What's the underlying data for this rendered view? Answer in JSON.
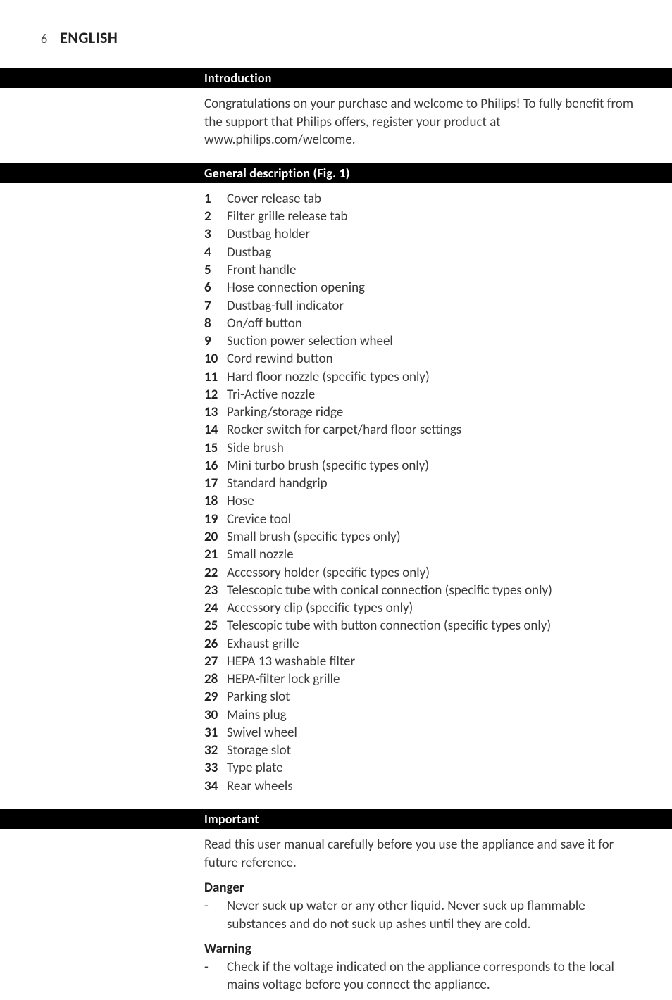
{
  "header": {
    "page_number": "6",
    "language": "ENGLISH"
  },
  "sections": {
    "introduction": {
      "heading": "Introduction",
      "body": "Congratulations on your purchase and welcome to Philips! To fully benefit from the support that Philips offers, register your product at www.philips.com/welcome."
    },
    "general_description": {
      "heading": "General description (Fig. 1)",
      "items": [
        "Cover release tab",
        "Filter grille release tab",
        "Dustbag holder",
        "Dustbag",
        "Front handle",
        "Hose connection opening",
        "Dustbag-full indicator",
        "On/off button",
        "Suction power selection wheel",
        "Cord rewind button",
        "Hard floor nozzle (specific types only)",
        "Tri-Active nozzle",
        "Parking/storage ridge",
        "Rocker switch for carpet/hard floor settings",
        "Side brush",
        "Mini turbo brush (specific types only)",
        "Standard handgrip",
        "Hose",
        "Crevice tool",
        "Small brush (specific types only)",
        "Small nozzle",
        "Accessory holder (specific types only)",
        "Telescopic tube with conical connection (specific types only)",
        "Accessory clip (specific types only)",
        "Telescopic tube with button connection (specific types only)",
        "Exhaust grille",
        "HEPA 13 washable filter",
        "HEPA-filter lock grille",
        "Parking slot",
        "Mains plug",
        "Swivel wheel",
        "Storage slot",
        "Type plate",
        "Rear wheels"
      ]
    },
    "important": {
      "heading": "Important",
      "intro": "Read this user manual carefully before you use the appliance and save it for future reference.",
      "danger": {
        "heading": "Danger",
        "items": [
          "Never suck up water or any other liquid. Never suck up flammable substances and do not suck up ashes until they are cold."
        ]
      },
      "warning": {
        "heading": "Warning",
        "items": [
          "Check if the voltage indicated on the appliance corresponds to the local mains voltage before you connect the appliance."
        ]
      }
    }
  }
}
